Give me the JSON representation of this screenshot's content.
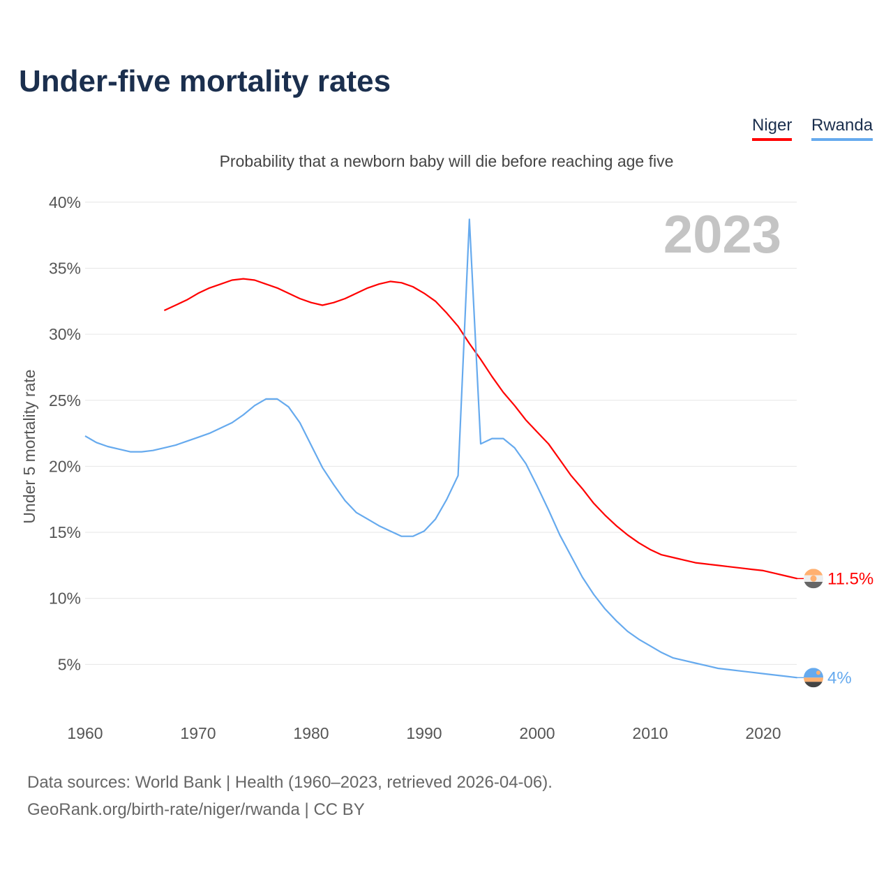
{
  "chart_data": {
    "type": "line",
    "title": "Under-five mortality rates",
    "subtitle": "Probability that a newborn baby will die before reaching age five",
    "ylabel": "Under 5 mortality rate",
    "xlabel": "",
    "year_watermark": "2023",
    "xlim": [
      1960,
      2023
    ],
    "ylim": [
      0,
      40
    ],
    "xticks": [
      1960,
      1970,
      1980,
      1990,
      2000,
      2010,
      2020
    ],
    "yticks": [
      5,
      10,
      15,
      20,
      25,
      30,
      35,
      40
    ],
    "ytick_labels": [
      "5%",
      "10%",
      "15%",
      "20%",
      "25%",
      "30%",
      "35%",
      "40%"
    ],
    "legend_position": "top-right",
    "series": [
      {
        "name": "Niger",
        "color": "#ff0000",
        "end_label": "11.5%",
        "start_year": 1967,
        "values": [
          31.8,
          32.2,
          32.6,
          33.1,
          33.5,
          33.8,
          34.1,
          34.2,
          34.1,
          33.8,
          33.5,
          33.1,
          32.7,
          32.4,
          32.2,
          32.4,
          32.7,
          33.1,
          33.5,
          33.8,
          34.0,
          33.9,
          33.6,
          33.1,
          32.5,
          31.6,
          30.6,
          29.3,
          28.1,
          26.8,
          25.6,
          24.6,
          23.5,
          22.6,
          21.7,
          20.5,
          19.3,
          18.3,
          17.2,
          16.3,
          15.5,
          14.8,
          14.2,
          13.7,
          13.3,
          13.1,
          12.9,
          12.7,
          12.6,
          12.5,
          12.4,
          12.3,
          12.2,
          12.1,
          11.9,
          11.7,
          11.5
        ]
      },
      {
        "name": "Rwanda",
        "color": "#66aaee",
        "end_label": "4%",
        "start_year": 1960,
        "values": [
          22.3,
          21.8,
          21.5,
          21.3,
          21.1,
          21.1,
          21.2,
          21.4,
          21.6,
          21.9,
          22.2,
          22.5,
          22.9,
          23.3,
          23.9,
          24.6,
          25.1,
          25.1,
          24.5,
          23.3,
          21.6,
          19.9,
          18.6,
          17.4,
          16.5,
          16.0,
          15.5,
          15.1,
          14.7,
          14.7,
          15.1,
          16.0,
          17.5,
          19.3,
          38.7,
          21.7,
          22.1,
          22.1,
          21.4,
          20.2,
          18.5,
          16.7,
          14.8,
          13.2,
          11.6,
          10.3,
          9.2,
          8.3,
          7.5,
          6.9,
          6.4,
          5.9,
          5.5,
          5.3,
          5.1,
          4.9,
          4.7,
          4.6,
          4.5,
          4.4,
          4.3,
          4.2,
          4.1,
          4.0
        ]
      }
    ]
  },
  "footer": {
    "line1": "Data sources: World Bank | Health (1960–2023, retrieved 2026-04-06).",
    "line2": "GeoRank.org/birth-rate/niger/rwanda | CC BY"
  }
}
